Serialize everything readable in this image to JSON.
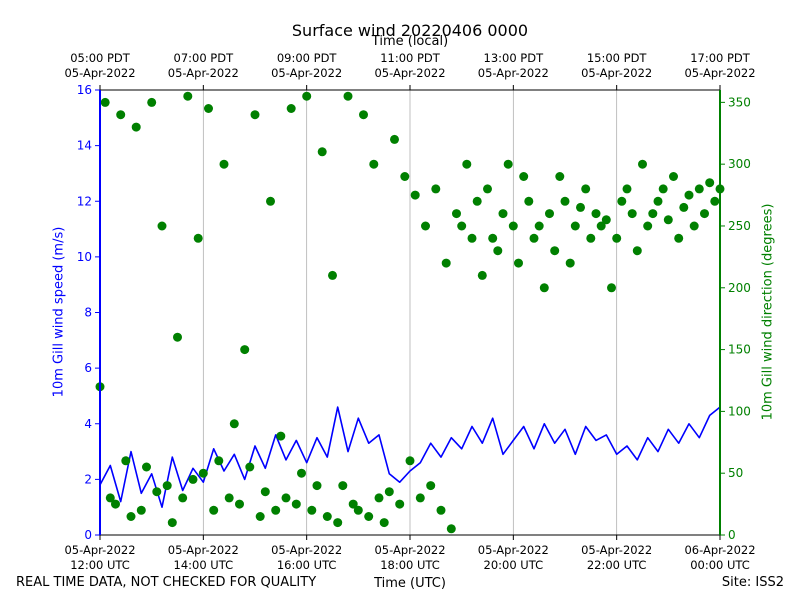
{
  "chart_data": {
    "type": "line+scatter",
    "title": "Surface wind 20220406 0000",
    "top_axis_label": "Time (local)",
    "xlabel": "Time (UTC)",
    "ylabel_left": "10m Gill wind speed (m/s)",
    "ylabel_right": "10m Gill wind direction (degrees)",
    "footer_left": "REAL TIME DATA, NOT CHECKED FOR QUALITY",
    "footer_right": "Site: ISS2",
    "xlim_hours_utc": [
      12,
      24
    ],
    "ylim_left": [
      0,
      16
    ],
    "ylim_right": [
      0,
      360
    ],
    "left_ticks": [
      "0",
      "2",
      "4",
      "6",
      "8",
      "10",
      "12",
      "14",
      "16"
    ],
    "right_ticks": [
      "0",
      "50",
      "100",
      "150",
      "200",
      "250",
      "300",
      "350"
    ],
    "bottom_ticks": [
      {
        "hour": 12,
        "line1": "05-Apr-2022",
        "line2": "12:00 UTC"
      },
      {
        "hour": 14,
        "line1": "05-Apr-2022",
        "line2": "14:00 UTC"
      },
      {
        "hour": 16,
        "line1": "05-Apr-2022",
        "line2": "16:00 UTC"
      },
      {
        "hour": 18,
        "line1": "05-Apr-2022",
        "line2": "18:00 UTC"
      },
      {
        "hour": 20,
        "line1": "05-Apr-2022",
        "line2": "20:00 UTC"
      },
      {
        "hour": 22,
        "line1": "05-Apr-2022",
        "line2": "22:00 UTC"
      },
      {
        "hour": 24,
        "line1": "06-Apr-2022",
        "line2": "00:00 UTC"
      }
    ],
    "top_ticks": [
      {
        "hour": 12,
        "line1": "05:00 PDT",
        "line2": "05-Apr-2022"
      },
      {
        "hour": 14,
        "line1": "07:00 PDT",
        "line2": "05-Apr-2022"
      },
      {
        "hour": 16,
        "line1": "09:00 PDT",
        "line2": "05-Apr-2022"
      },
      {
        "hour": 18,
        "line1": "11:00 PDT",
        "line2": "05-Apr-2022"
      },
      {
        "hour": 20,
        "line1": "13:00 PDT",
        "line2": "05-Apr-2022"
      },
      {
        "hour": 22,
        "line1": "15:00 PDT",
        "line2": "05-Apr-2022"
      },
      {
        "hour": 24,
        "line1": "17:00 PDT",
        "line2": "05-Apr-2022"
      }
    ],
    "colors": {
      "speed": "#0000ff",
      "direction": "#008000",
      "grid": "#b0b0b0"
    },
    "series": [
      {
        "name": "10m Gill wind speed",
        "axis": "left",
        "style": "line",
        "x_hours": [
          12.0,
          12.2,
          12.4,
          12.6,
          12.8,
          13.0,
          13.2,
          13.4,
          13.6,
          13.8,
          14.0,
          14.2,
          14.4,
          14.6,
          14.8,
          15.0,
          15.2,
          15.4,
          15.6,
          15.8,
          16.0,
          16.2,
          16.4,
          16.6,
          16.8,
          17.0,
          17.2,
          17.4,
          17.6,
          17.8,
          18.0,
          18.2,
          18.4,
          18.6,
          18.8,
          19.0,
          19.2,
          19.4,
          19.6,
          19.8,
          20.0,
          20.2,
          20.4,
          20.6,
          20.8,
          21.0,
          21.2,
          21.4,
          21.6,
          21.8,
          22.0,
          22.2,
          22.4,
          22.6,
          22.8,
          23.0,
          23.2,
          23.4,
          23.6,
          23.8,
          24.0
        ],
        "values": [
          1.8,
          2.5,
          1.2,
          3.0,
          1.5,
          2.2,
          1.0,
          2.8,
          1.6,
          2.4,
          1.9,
          3.1,
          2.3,
          2.9,
          2.0,
          3.2,
          2.4,
          3.6,
          2.7,
          3.4,
          2.6,
          3.5,
          2.8,
          4.6,
          3.0,
          4.2,
          3.3,
          3.6,
          2.2,
          1.9,
          2.3,
          2.6,
          3.3,
          2.8,
          3.5,
          3.1,
          3.9,
          3.3,
          4.2,
          2.9,
          3.4,
          3.9,
          3.1,
          4.0,
          3.3,
          3.8,
          2.9,
          3.9,
          3.4,
          3.6,
          2.9,
          3.2,
          2.7,
          3.5,
          3.0,
          3.8,
          3.3,
          4.0,
          3.5,
          4.3,
          4.6
        ]
      },
      {
        "name": "10m Gill wind direction",
        "axis": "right",
        "style": "scatter",
        "x_hours": [
          12.0,
          12.1,
          12.2,
          12.3,
          12.4,
          12.5,
          12.6,
          12.7,
          12.8,
          12.9,
          13.0,
          13.1,
          13.2,
          13.3,
          13.4,
          13.5,
          13.6,
          13.7,
          13.8,
          13.9,
          14.0,
          14.1,
          14.2,
          14.3,
          14.4,
          14.5,
          14.6,
          14.7,
          14.8,
          14.9,
          15.0,
          15.1,
          15.2,
          15.3,
          15.4,
          15.5,
          15.6,
          15.7,
          15.8,
          15.9,
          16.0,
          16.1,
          16.2,
          16.3,
          16.4,
          16.5,
          16.6,
          16.7,
          16.8,
          16.9,
          17.0,
          17.1,
          17.2,
          17.3,
          17.4,
          17.5,
          17.6,
          17.7,
          17.8,
          17.9,
          18.0,
          18.1,
          18.2,
          18.3,
          18.4,
          18.5,
          18.6,
          18.7,
          18.8,
          18.9,
          19.0,
          19.1,
          19.2,
          19.3,
          19.4,
          19.5,
          19.6,
          19.7,
          19.8,
          19.9,
          20.0,
          20.1,
          20.2,
          20.3,
          20.4,
          20.5,
          20.6,
          20.7,
          20.8,
          20.9,
          21.0,
          21.1,
          21.2,
          21.3,
          21.4,
          21.5,
          21.6,
          21.7,
          21.8,
          21.9,
          22.0,
          22.1,
          22.2,
          22.3,
          22.4,
          22.5,
          22.6,
          22.7,
          22.8,
          22.9,
          23.0,
          23.1,
          23.2,
          23.3,
          23.4,
          23.5,
          23.6,
          23.7,
          23.8,
          23.9,
          24.0
        ],
        "values": [
          120,
          350,
          30,
          25,
          340,
          60,
          15,
          330,
          20,
          55,
          350,
          35,
          250,
          40,
          10,
          160,
          30,
          355,
          45,
          240,
          50,
          345,
          20,
          60,
          300,
          30,
          90,
          25,
          150,
          55,
          340,
          15,
          35,
          270,
          20,
          80,
          30,
          345,
          25,
          50,
          355,
          20,
          40,
          310,
          15,
          210,
          10,
          40,
          355,
          25,
          20,
          340,
          15,
          300,
          30,
          10,
          35,
          320,
          25,
          290,
          60,
          275,
          30,
          250,
          40,
          280,
          20,
          220,
          5,
          260,
          250,
          300,
          240,
          270,
          210,
          280,
          240,
          230,
          260,
          300,
          250,
          220,
          290,
          270,
          240,
          250,
          200,
          260,
          230,
          290,
          270,
          220,
          250,
          265,
          280,
          240,
          260,
          250,
          255,
          200,
          240,
          270,
          280,
          260,
          230,
          300,
          250,
          260,
          270,
          280,
          255,
          290,
          240,
          265,
          275,
          250,
          280,
          260,
          285,
          270,
          280
        ]
      }
    ]
  }
}
